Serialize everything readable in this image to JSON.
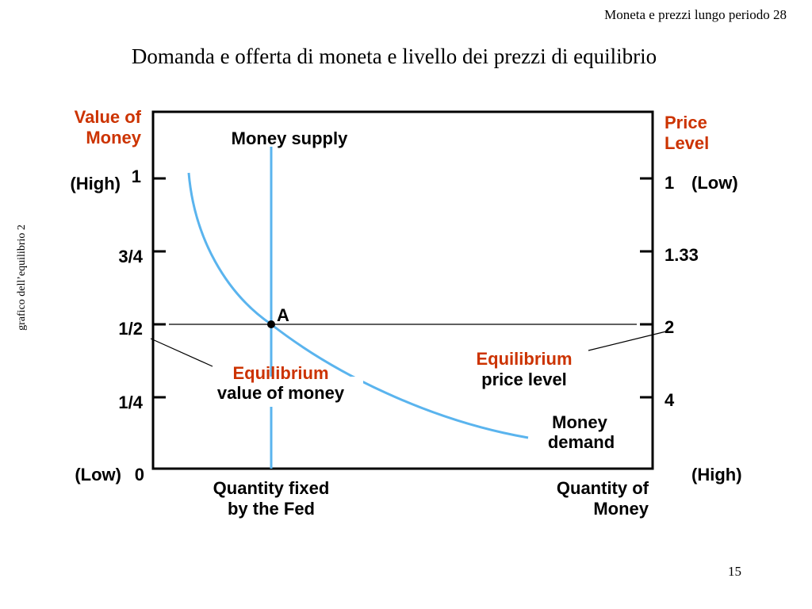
{
  "header": "Moneta e prezzi lungo periodo  28",
  "title": "Domanda e offerta di moneta e livello dei prezzi di equilibrio",
  "side_note": "grafico dell’equilibrio 2",
  "page_number": "15",
  "diagram": {
    "left_axis_title": [
      "Value of",
      "Money"
    ],
    "right_axis_title": [
      "Price",
      "Level"
    ],
    "left_ticks": [
      "1",
      "3/4",
      "1/2",
      "1/4",
      "0"
    ],
    "right_ticks": [
      "1",
      "1.33",
      "2",
      "4"
    ],
    "high_left": "(High)",
    "low_right": "(Low)",
    "low_left": "(Low)",
    "high_right": "(High)",
    "supply_label": "Money supply",
    "demand_label": [
      "Money",
      "demand"
    ],
    "point_label": "A",
    "eq_value_label": [
      "Equilibrium",
      "value of money"
    ],
    "eq_price_label": [
      "Equilibrium",
      "price level"
    ],
    "x_fixed_label": [
      "Quantity fixed",
      "by the Fed"
    ],
    "x_axis_title": [
      "Quantity of",
      "Money"
    ]
  }
}
